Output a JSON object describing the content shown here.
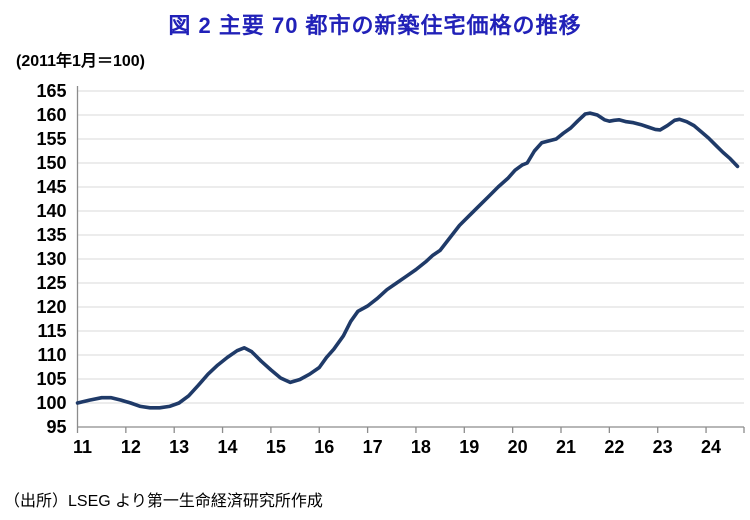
{
  "title": "図 2  主要 70 都市の新築住宅価格の推移",
  "index_note": "(2011年1月＝100)",
  "source": "（出所）LSEG より第一生命経済研究所作成",
  "colors": {
    "title_blue": "#2121b8",
    "line_navy": "#1f3a68",
    "grid_gray": "#d9d9d9",
    "axis_gray": "#8c8c8c",
    "text_black": "#000000"
  },
  "chart_data": {
    "type": "line",
    "title": "図 2  主要 70 都市の新築住宅価格の推移",
    "subtitle": "(2011年1月＝100)",
    "xlabel": "",
    "ylabel": "",
    "x_tick_labels": [
      "11",
      "12",
      "13",
      "14",
      "15",
      "16",
      "17",
      "18",
      "19",
      "20",
      "21",
      "22",
      "23",
      "24"
    ],
    "y_ticks": [
      95,
      100,
      105,
      110,
      115,
      120,
      125,
      130,
      135,
      140,
      145,
      150,
      155,
      160,
      165
    ],
    "ylim": [
      95,
      165
    ],
    "xlim": [
      11,
      24.8
    ],
    "grid": "horizontal",
    "legend": "none",
    "series": [
      {
        "x": [
          11.0,
          11.25,
          11.5,
          11.7,
          11.9,
          12.1,
          12.3,
          12.5,
          12.7,
          12.9,
          13.1,
          13.3,
          13.5,
          13.7,
          13.9,
          14.1,
          14.3,
          14.45,
          14.6,
          14.8,
          15.0,
          15.2,
          15.4,
          15.6,
          15.8,
          16.0,
          16.15,
          16.3,
          16.5,
          16.65,
          16.8,
          17.0,
          17.2,
          17.4,
          17.6,
          17.8,
          18.0,
          18.2,
          18.35,
          18.5,
          18.7,
          18.9,
          19.1,
          19.3,
          19.5,
          19.7,
          19.9,
          20.05,
          20.2,
          20.3,
          20.45,
          20.6,
          20.75,
          20.9,
          21.05,
          21.2,
          21.35,
          21.5,
          21.6,
          21.75,
          21.9,
          22.0,
          22.1,
          22.2,
          22.35,
          22.5,
          22.65,
          22.8,
          22.95,
          23.05,
          23.2,
          23.35,
          23.45,
          23.6,
          23.75,
          23.9,
          24.05,
          24.2,
          24.35,
          24.5,
          24.65
        ],
        "values": [
          100.0,
          100.6,
          101.1,
          101.1,
          100.6,
          100.0,
          99.3,
          99.0,
          99.0,
          99.3,
          100.0,
          101.5,
          103.7,
          106.0,
          107.9,
          109.5,
          110.9,
          111.5,
          110.7,
          108.7,
          106.9,
          105.2,
          104.3,
          104.9,
          106.0,
          107.4,
          109.5,
          111.2,
          114.0,
          117.0,
          119.1,
          120.2,
          121.8,
          123.6,
          125.0,
          126.4,
          127.8,
          129.4,
          130.8,
          131.8,
          134.4,
          137.0,
          139.0,
          141.0,
          143.0,
          145.0,
          146.8,
          148.5,
          149.6,
          150.0,
          152.5,
          154.2,
          154.6,
          155.0,
          156.2,
          157.3,
          158.8,
          160.2,
          160.4,
          160.0,
          159.0,
          158.7,
          158.9,
          159.0,
          158.6,
          158.4,
          158.0,
          157.5,
          157.0,
          156.9,
          157.8,
          158.9,
          159.1,
          158.6,
          157.8,
          156.5,
          155.2,
          153.7,
          152.2,
          150.9,
          149.3
        ]
      }
    ]
  }
}
